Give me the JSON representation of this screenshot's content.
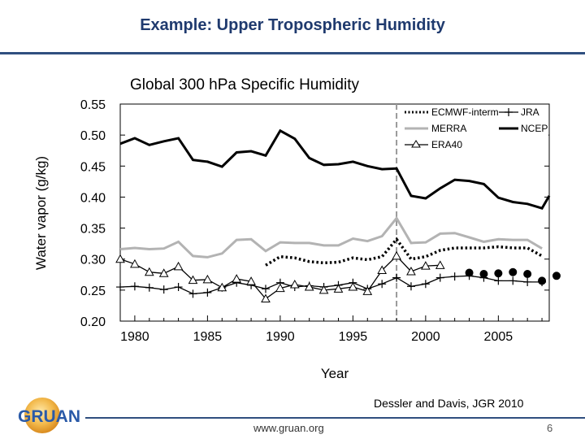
{
  "slide": {
    "title": "Example: Upper Tropospheric Humidity",
    "citation": "Dessler and Davis, JGR 2010",
    "url": "www.gruan.org",
    "page_number": "6",
    "logo_text": "GRUAN"
  },
  "chart_data": {
    "type": "line",
    "title": "Global 300 hPa Specific Humidity",
    "xlabel": "Year",
    "ylabel": "Water vapor (g/kg)",
    "xlim": [
      1979,
      2008.5
    ],
    "ylim": [
      0.2,
      0.55
    ],
    "xticks": [
      1980,
      1985,
      1990,
      1995,
      2000,
      2005
    ],
    "yticks": [
      0.2,
      0.25,
      0.3,
      0.35,
      0.4,
      0.45,
      0.5,
      0.55
    ],
    "ytick_labels": [
      "0.20",
      "0.25",
      "0.30",
      "0.35",
      "0.40",
      "0.45",
      "0.50",
      "0.55"
    ],
    "reference_line_x": 1998,
    "legend_position": "top-right",
    "legend": [
      "ECMWF-interm",
      "JRA",
      "MERRA",
      "NCEP",
      "ERA40"
    ],
    "colors": {
      "ncep": "#000000",
      "merra": "#b3b3b3",
      "ecmwf": "#000000",
      "jra": "#000000",
      "era40": "#000000",
      "ref_line": "#999999",
      "dots": "#000000"
    },
    "series": [
      {
        "name": "NCEP",
        "style": "solid-thick",
        "x": [
          1979,
          1980,
          1981,
          1982,
          1983,
          1984,
          1985,
          1986,
          1987,
          1988,
          1989,
          1990,
          1991,
          1992,
          1993,
          1994,
          1995,
          1996,
          1997,
          1998,
          1999,
          2000,
          2001,
          2002,
          2003,
          2004,
          2005,
          2006,
          2007,
          2008,
          2008.5
        ],
        "y": [
          0.486,
          0.495,
          0.484,
          0.49,
          0.495,
          0.46,
          0.457,
          0.449,
          0.472,
          0.474,
          0.467,
          0.507,
          0.494,
          0.463,
          0.452,
          0.453,
          0.457,
          0.45,
          0.445,
          0.446,
          0.402,
          0.398,
          0.414,
          0.428,
          0.426,
          0.421,
          0.399,
          0.392,
          0.389,
          0.382,
          0.402
        ]
      },
      {
        "name": "MERRA",
        "style": "solid-gray",
        "x": [
          1979,
          1980,
          1981,
          1982,
          1983,
          1984,
          1985,
          1986,
          1987,
          1988,
          1989,
          1990,
          1991,
          1992,
          1993,
          1994,
          1995,
          1996,
          1997,
          1998,
          1999,
          2000,
          2001,
          2002,
          2003,
          2004,
          2005,
          2006,
          2007,
          2008
        ],
        "y": [
          0.316,
          0.318,
          0.316,
          0.317,
          0.328,
          0.305,
          0.303,
          0.309,
          0.331,
          0.332,
          0.313,
          0.327,
          0.326,
          0.326,
          0.322,
          0.322,
          0.333,
          0.329,
          0.337,
          0.366,
          0.326,
          0.327,
          0.341,
          0.342,
          0.335,
          0.328,
          0.332,
          0.331,
          0.331,
          0.317
        ]
      },
      {
        "name": "ECMWF-interm",
        "style": "dotted",
        "x": [
          1989,
          1990,
          1991,
          1992,
          1993,
          1994,
          1995,
          1996,
          1997,
          1998,
          1999,
          2000,
          2001,
          2002,
          2003,
          2004,
          2005,
          2006,
          2007,
          2008
        ],
        "y": [
          0.29,
          0.304,
          0.302,
          0.296,
          0.294,
          0.295,
          0.302,
          0.299,
          0.304,
          0.332,
          0.3,
          0.304,
          0.314,
          0.318,
          0.318,
          0.318,
          0.32,
          0.318,
          0.318,
          0.305
        ]
      },
      {
        "name": "JRA",
        "style": "solid-plus",
        "x": [
          1979,
          1980,
          1981,
          1982,
          1983,
          1984,
          1985,
          1986,
          1987,
          1988,
          1989,
          1990,
          1991,
          1992,
          1993,
          1994,
          1995,
          1996,
          1997,
          1998,
          1999,
          2000,
          2001,
          2002,
          2003,
          2004,
          2005,
          2006,
          2007,
          2008
        ],
        "y": [
          0.255,
          0.256,
          0.254,
          0.251,
          0.255,
          0.244,
          0.246,
          0.254,
          0.262,
          0.258,
          0.252,
          0.262,
          0.255,
          0.257,
          0.255,
          0.258,
          0.262,
          0.252,
          0.26,
          0.27,
          0.256,
          0.26,
          0.27,
          0.272,
          0.273,
          0.27,
          0.265,
          0.265,
          0.263,
          0.263
        ]
      },
      {
        "name": "ERA40",
        "style": "solid-triangle",
        "x": [
          1979,
          1980,
          1981,
          1982,
          1983,
          1984,
          1985,
          1986,
          1987,
          1988,
          1989,
          1990,
          1991,
          1992,
          1993,
          1994,
          1995,
          1996,
          1997,
          1998,
          1999,
          2000,
          2001
        ],
        "y": [
          0.3,
          0.292,
          0.279,
          0.277,
          0.288,
          0.266,
          0.267,
          0.254,
          0.268,
          0.264,
          0.236,
          0.253,
          0.259,
          0.255,
          0.25,
          0.252,
          0.255,
          0.248,
          0.282,
          0.305,
          0.28,
          0.289,
          0.29
        ]
      },
      {
        "name": "",
        "style": "dots",
        "x": [
          2003,
          2004,
          2005,
          2006,
          2007,
          2008,
          2009
        ],
        "y": [
          0.278,
          0.276,
          0.277,
          0.279,
          0.276,
          0.265,
          0.273
        ]
      }
    ]
  }
}
